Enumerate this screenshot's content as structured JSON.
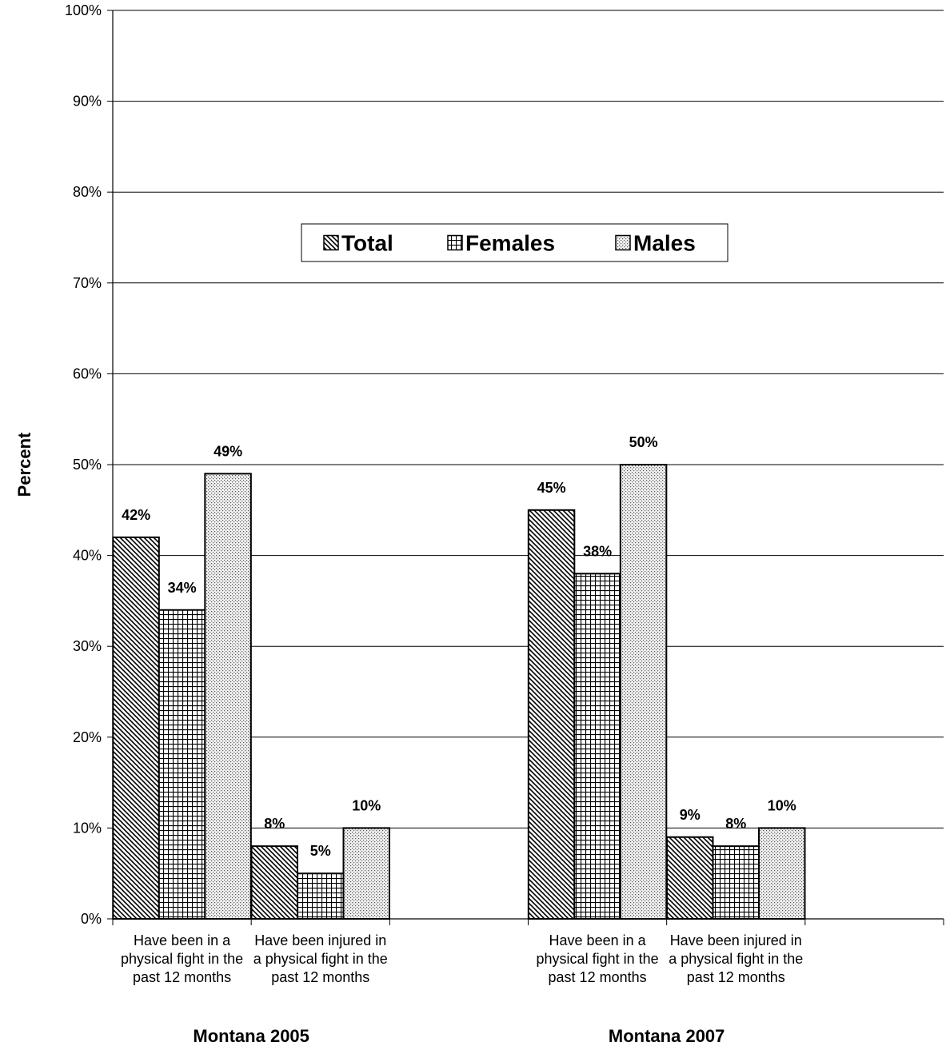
{
  "chart_data": {
    "type": "bar",
    "ylabel": "Percent",
    "ylim": [
      0,
      100
    ],
    "yticks": [
      "0%",
      "10%",
      "20%",
      "30%",
      "40%",
      "50%",
      "60%",
      "70%",
      "80%",
      "90%",
      "100%"
    ],
    "grid": true,
    "legend_position": "top-center",
    "groups": [
      {
        "label": "Montana 2005",
        "categories": [
          [
            "Have been in a",
            "physical fight in the",
            "past 12 months"
          ],
          [
            "Have been injured in",
            "a physical fight in the",
            "past 12 months"
          ]
        ]
      },
      {
        "label": "Montana 2007",
        "categories": [
          [
            "Have been in a",
            "physical fight in the",
            "past 12 months"
          ],
          [
            "Have been injured in",
            "a physical fight in the",
            "past 12 months"
          ]
        ]
      }
    ],
    "series": [
      {
        "name": "Total",
        "pattern": "diagonal",
        "values": [
          42,
          8,
          45,
          9
        ],
        "labels": [
          "42%",
          "8%",
          "45%",
          "9%"
        ]
      },
      {
        "name": "Females",
        "pattern": "grid",
        "values": [
          34,
          5,
          38,
          8
        ],
        "labels": [
          "34%",
          "5%",
          "38%",
          "8%"
        ]
      },
      {
        "name": "Males",
        "pattern": "dots",
        "values": [
          49,
          10,
          50,
          10
        ],
        "labels": [
          "49%",
          "10%",
          "50%",
          "10%"
        ]
      }
    ]
  }
}
